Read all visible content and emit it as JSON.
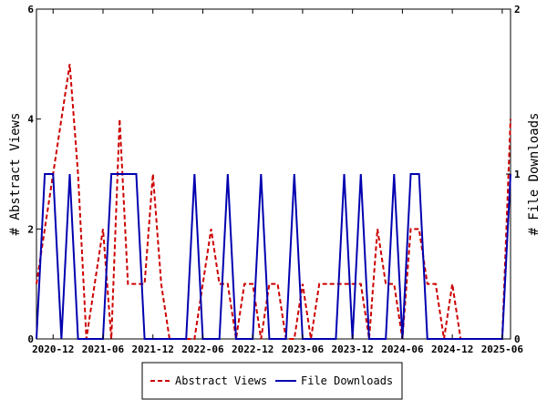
{
  "chart_data": {
    "type": "line",
    "x": [
      "2020-10",
      "2020-11",
      "2020-12",
      "2021-01",
      "2021-02",
      "2021-03",
      "2021-04",
      "2021-05",
      "2021-06",
      "2021-07",
      "2021-08",
      "2021-09",
      "2021-10",
      "2021-11",
      "2021-12",
      "2022-01",
      "2022-02",
      "2022-03",
      "2022-04",
      "2022-05",
      "2022-06",
      "2022-07",
      "2022-08",
      "2022-09",
      "2022-10",
      "2022-11",
      "2022-12",
      "2023-01",
      "2023-02",
      "2023-03",
      "2023-04",
      "2023-05",
      "2023-06",
      "2023-07",
      "2023-08",
      "2023-09",
      "2023-10",
      "2023-11",
      "2023-12",
      "2024-01",
      "2024-02",
      "2024-03",
      "2024-04",
      "2024-05",
      "2024-06",
      "2024-07",
      "2024-08",
      "2024-09",
      "2024-10",
      "2024-11",
      "2024-12",
      "2025-01",
      "2025-02",
      "2025-03",
      "2025-04",
      "2025-05",
      "2025-06",
      "2025-07"
    ],
    "series": [
      {
        "name": "Abstract Views",
        "axis": "left",
        "color": "#cc0000",
        "style": "dashed",
        "values": [
          1,
          2,
          3,
          4,
          5,
          3,
          0,
          1,
          2,
          0,
          4,
          1,
          1,
          1,
          3,
          1,
          0,
          0,
          0,
          0,
          1,
          2,
          1,
          1,
          0,
          1,
          1,
          0,
          1,
          1,
          0,
          0,
          1,
          0,
          1,
          1,
          1,
          1,
          1,
          1,
          0,
          2,
          1,
          1,
          0,
          2,
          2,
          1,
          1,
          0,
          1,
          0,
          0,
          0,
          0,
          0,
          0,
          4
        ]
      },
      {
        "name": "File Downloads",
        "axis": "right",
        "color": "#0000b0",
        "style": "solid",
        "values": [
          0,
          1,
          1,
          0,
          1,
          0,
          0,
          0,
          0,
          1,
          1,
          1,
          1,
          0,
          0,
          0,
          0,
          0,
          0,
          1,
          0,
          0,
          0,
          1,
          0,
          0,
          0,
          1,
          0,
          0,
          0,
          1,
          0,
          0,
          0,
          0,
          0,
          1,
          0,
          1,
          0,
          0,
          0,
          1,
          0,
          1,
          1,
          0,
          0,
          0,
          0,
          0,
          0,
          0,
          0,
          0,
          0,
          1
        ]
      }
    ],
    "x_ticks": [
      "2020-12",
      "2021-06",
      "2021-12",
      "2022-06",
      "2022-12",
      "2023-06",
      "2023-12",
      "2024-06",
      "2024-12",
      "2025-06"
    ],
    "ylabel": "# Abstract Views",
    "y2label": "# File Downloads",
    "ylim": [
      0,
      6
    ],
    "y_ticks": [
      "0",
      "2",
      "4",
      "6"
    ],
    "y2lim": [
      0,
      2
    ],
    "y2_ticks": [
      "0",
      "1",
      "2"
    ],
    "grid": false,
    "legend_position": "bottom-center"
  }
}
